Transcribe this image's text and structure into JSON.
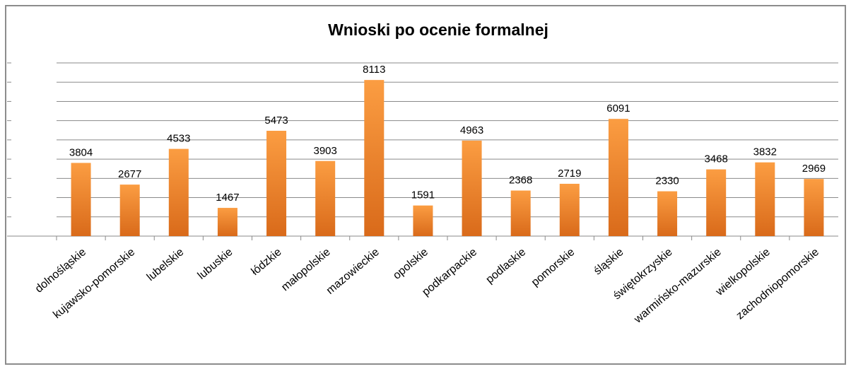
{
  "chart_data": {
    "type": "bar",
    "title": "Wnioski po ocenie formalnej",
    "categories": [
      "dolnośląskie",
      "kujawsko-pomorskie",
      "lubelskie",
      "lubuskie",
      "łódzkie",
      "małopolskie",
      "mazowieckie",
      "opolskie",
      "podkarpackie",
      "podlaskie",
      "pomorskie",
      "śląskie",
      "świętokrzyskie",
      "warmińsko-mazurskie",
      "wielkopolskie",
      "zachodniopomorskie"
    ],
    "values": [
      3804,
      2677,
      4533,
      1467,
      5473,
      3903,
      8113,
      1591,
      4963,
      2368,
      2719,
      6091,
      2330,
      3468,
      3832,
      2969
    ],
    "color": "#f28a2a",
    "ylim": [
      0,
      9000
    ],
    "yticks": [
      0,
      1000,
      2000,
      3000,
      4000,
      5000,
      6000,
      7000,
      8000,
      9000
    ],
    "grid": true
  }
}
